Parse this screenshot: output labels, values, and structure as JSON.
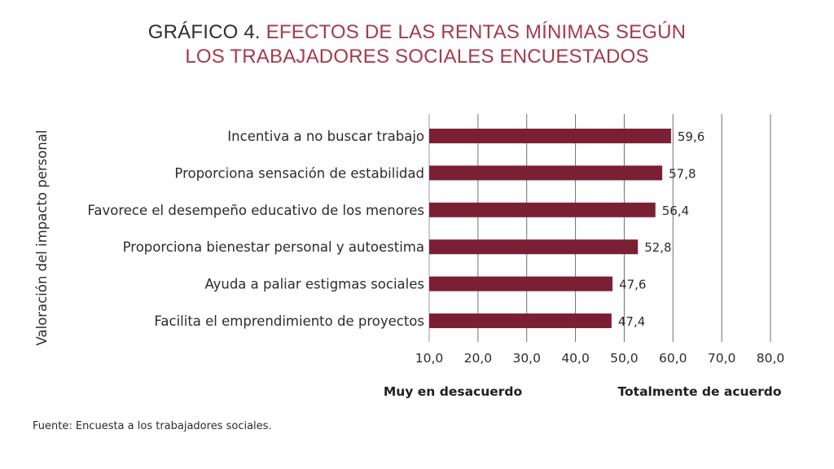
{
  "title": {
    "prefix": "GRÁFICO 4.",
    "line1": "EFECTOS DE LAS RENTAS MÍNIMAS SEGÚN",
    "line2": "LOS TRABAJADORES SOCIALES ENCUESTADOS"
  },
  "chart_data": {
    "type": "bar",
    "orientation": "horizontal",
    "categories": [
      "Incentiva a no buscar trabajo",
      "Proporciona sensación de estabilidad",
      "Favorece el desempeño educativo de los menores",
      "Proporciona bienestar personal y autoestima",
      "Ayuda a paliar estigmas sociales",
      "Facilita el emprendimiento de proyectos"
    ],
    "values": [
      59.6,
      57.8,
      56.4,
      52.8,
      47.6,
      47.4
    ],
    "value_labels": [
      "59,6",
      "57,8",
      "56,4",
      "52,8",
      "47,6",
      "47,4"
    ],
    "xlim": [
      10,
      80
    ],
    "x_ticks": [
      10,
      20,
      30,
      40,
      50,
      60,
      70,
      80
    ],
    "x_tick_labels": [
      "10,0",
      "20,0",
      "30,0",
      "40,0",
      "50,0",
      "60,0",
      "70,0",
      "80,0"
    ],
    "ylabel": "Valoración del impacto personal",
    "scale_left_label": "Muy en desacuerdo",
    "scale_right_label": "Totalmente de acuerdo",
    "bar_color": "#7b1f35",
    "grid": true
  },
  "source": "Fuente: Encuesta a los trabajadores sociales."
}
